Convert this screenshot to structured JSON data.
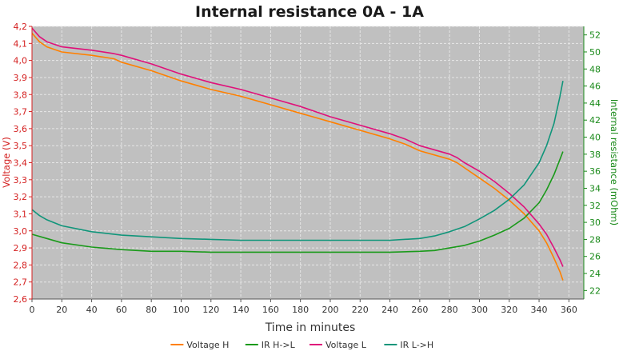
{
  "chart_data": {
    "type": "line",
    "title": "Internal resistance  0A - 1A",
    "xlabel": "Time in minutes",
    "ylabel_left": "Voltage (V)",
    "ylabel_right": "Internal resistance (mOhm)",
    "xlim": [
      0,
      370
    ],
    "ylim_left": [
      2.6,
      4.2
    ],
    "ylim_right": [
      21,
      53
    ],
    "x_ticks": [
      "0",
      "20",
      "40",
      "60",
      "80",
      "100",
      "120",
      "140",
      "160",
      "180",
      "200",
      "220",
      "240",
      "260",
      "280",
      "300",
      "320",
      "340",
      "360"
    ],
    "y_left_ticks": [
      "2,6",
      "2,7",
      "2,8",
      "2,9",
      "3,0",
      "3,1",
      "3,2",
      "3,3",
      "3,4",
      "3,5",
      "3,6",
      "3,7",
      "3,8",
      "3,9",
      "4,0",
      "4,1",
      "4,2"
    ],
    "y_right_ticks": [
      "22",
      "24",
      "26",
      "28",
      "30",
      "32",
      "34",
      "36",
      "38",
      "40",
      "42",
      "44",
      "46",
      "48",
      "50",
      "52"
    ],
    "grid": true,
    "legend_position": "bottom",
    "colors": {
      "plot_bg": "#c0c0c0",
      "grid": "#e6e6e6",
      "left_axis": "#d42020",
      "right_axis": "#1a8a1a"
    },
    "series": [
      {
        "name": "Voltage H",
        "axis": "left",
        "color": "#ff8000",
        "x": [
          0,
          5,
          10,
          20,
          40,
          55,
          60,
          80,
          100,
          120,
          140,
          160,
          180,
          200,
          220,
          240,
          250,
          260,
          280,
          285,
          290,
          300,
          310,
          320,
          330,
          340,
          345,
          350,
          354,
          356
        ],
        "y": [
          4.16,
          4.11,
          4.08,
          4.05,
          4.03,
          4.01,
          3.99,
          3.94,
          3.88,
          3.83,
          3.79,
          3.74,
          3.69,
          3.64,
          3.59,
          3.54,
          3.51,
          3.47,
          3.42,
          3.4,
          3.37,
          3.31,
          3.25,
          3.18,
          3.1,
          3.0,
          2.93,
          2.84,
          2.76,
          2.71
        ]
      },
      {
        "name": "IR H->L",
        "axis": "right",
        "color": "#1a9a1a",
        "x": [
          0,
          10,
          20,
          40,
          60,
          80,
          100,
          120,
          140,
          160,
          180,
          200,
          220,
          240,
          260,
          270,
          280,
          290,
          300,
          310,
          320,
          330,
          340,
          345,
          350,
          354,
          356
        ],
        "y": [
          28.6,
          28.1,
          27.6,
          27.1,
          26.8,
          26.6,
          26.6,
          26.5,
          26.5,
          26.5,
          26.5,
          26.5,
          26.5,
          26.5,
          26.6,
          26.7,
          27.0,
          27.3,
          27.8,
          28.5,
          29.3,
          30.5,
          32.3,
          33.8,
          35.6,
          37.4,
          38.3
        ]
      },
      {
        "name": "Voltage L",
        "axis": "left",
        "color": "#e0107a",
        "x": [
          0,
          5,
          10,
          20,
          40,
          55,
          60,
          80,
          100,
          120,
          140,
          160,
          180,
          200,
          220,
          240,
          250,
          260,
          280,
          285,
          290,
          300,
          310,
          320,
          330,
          340,
          345,
          350,
          354,
          356
        ],
        "y": [
          4.19,
          4.14,
          4.11,
          4.08,
          4.06,
          4.04,
          4.03,
          3.98,
          3.92,
          3.87,
          3.83,
          3.78,
          3.73,
          3.67,
          3.62,
          3.57,
          3.54,
          3.5,
          3.45,
          3.43,
          3.4,
          3.35,
          3.29,
          3.22,
          3.14,
          3.04,
          2.98,
          2.9,
          2.83,
          2.79
        ]
      },
      {
        "name": "IR L->H",
        "axis": "right",
        "color": "#10957a",
        "x": [
          0,
          5,
          10,
          20,
          40,
          60,
          80,
          100,
          120,
          140,
          160,
          180,
          200,
          220,
          240,
          260,
          270,
          280,
          290,
          300,
          310,
          320,
          330,
          340,
          345,
          350,
          354,
          356
        ],
        "y": [
          31.5,
          30.8,
          30.3,
          29.6,
          28.9,
          28.5,
          28.3,
          28.1,
          28.0,
          27.9,
          27.9,
          27.9,
          27.9,
          27.9,
          27.9,
          28.1,
          28.4,
          28.9,
          29.5,
          30.4,
          31.4,
          32.7,
          34.4,
          37.0,
          39.0,
          41.6,
          44.8,
          46.6
        ]
      }
    ]
  }
}
